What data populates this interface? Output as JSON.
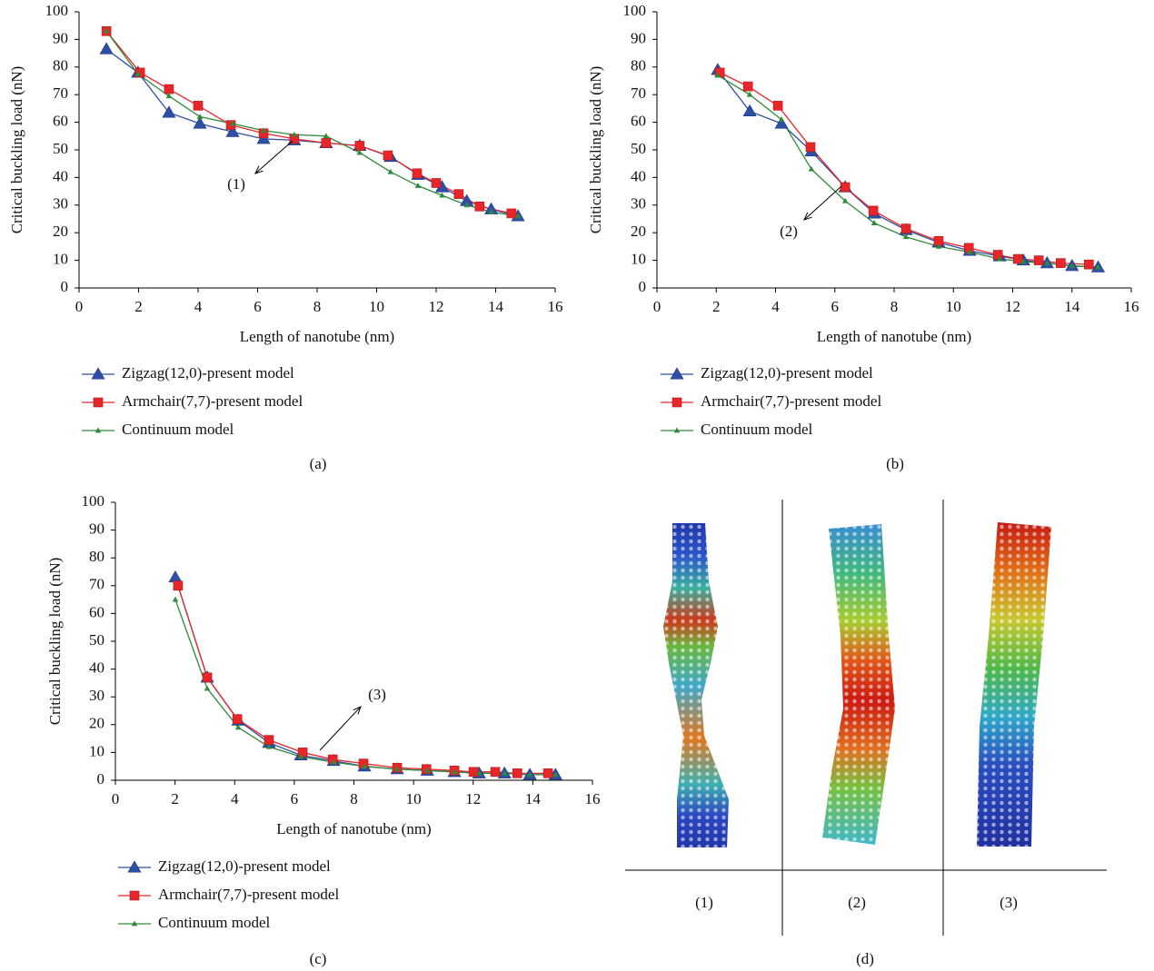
{
  "chart_data": [
    {
      "type": "line",
      "xlabel": "Length of nanotube (nm)",
      "ylabel": "Critical buckling load (nN)",
      "caption": "(a)",
      "annotation": "(1)",
      "xlim": [
        0,
        16
      ],
      "ylim": [
        0,
        100
      ],
      "xticks": [
        0,
        2,
        4,
        6,
        8,
        10,
        12,
        14,
        16
      ],
      "yticks": [
        0,
        10,
        20,
        30,
        40,
        50,
        60,
        70,
        80,
        90,
        100
      ],
      "series": [
        {
          "name": "Zigzag(12,0)-present model",
          "color": "#2e4fa6",
          "marker": "triangle",
          "x": [
            0.92,
            1.98,
            3.02,
            4.06,
            5.16,
            6.2,
            7.23,
            8.3,
            9.43,
            10.47,
            11.39,
            12.2,
            13.03,
            13.85,
            14.75
          ],
          "values": [
            86.5,
            78,
            63.5,
            59.5,
            56.5,
            54,
            53.5,
            52.5,
            51.5,
            47.5,
            41,
            36.5,
            31.5,
            28.5,
            26
          ]
        },
        {
          "name": "Armchair(7,7)-present model",
          "color": "#e8262a",
          "marker": "square",
          "x": [
            0.92,
            2.05,
            3.02,
            4.0,
            5.1,
            6.2,
            7.23,
            8.3,
            9.43,
            10.38,
            11.36,
            12.0,
            12.76,
            13.46,
            14.53
          ],
          "values": [
            93,
            78,
            72,
            66,
            59,
            56,
            54,
            52.5,
            51.5,
            48,
            41.5,
            38,
            34,
            29.5,
            27
          ]
        },
        {
          "name": "Continuum model",
          "color": "#2e8b3a",
          "marker": "small-triangle",
          "x": [
            0.92,
            1.98,
            3.02,
            4.06,
            5.16,
            6.2,
            7.23,
            8.3,
            9.43,
            10.47,
            11.39,
            12.2,
            13.03,
            13.85,
            14.75
          ],
          "values": [
            93,
            77.5,
            69.5,
            62,
            59.5,
            57,
            55.5,
            55,
            49,
            42,
            37,
            33.5,
            30,
            27.5,
            26
          ]
        }
      ]
    },
    {
      "type": "line",
      "xlabel": "Length of nanotube (nm)",
      "ylabel": "Critical buckling load (nN)",
      "caption": "(b)",
      "annotation": "(2)",
      "xlim": [
        0,
        16
      ],
      "ylim": [
        0,
        100
      ],
      "xticks": [
        0,
        2,
        4,
        6,
        8,
        10,
        12,
        14,
        16
      ],
      "yticks": [
        0,
        10,
        20,
        30,
        40,
        50,
        60,
        70,
        80,
        90,
        100
      ],
      "series": [
        {
          "name": "Zigzag(12,0)-present model",
          "color": "#2e4fa6",
          "marker": "triangle",
          "x": [
            2.05,
            3.13,
            4.2,
            5.21,
            6.35,
            7.33,
            8.4,
            9.5,
            10.55,
            11.56,
            12.36,
            13.16,
            14.0,
            14.88
          ],
          "values": [
            79,
            64,
            59.5,
            49.5,
            36.5,
            27,
            21,
            16.5,
            13.5,
            11.5,
            10,
            9,
            8,
            7.5
          ]
        },
        {
          "name": "Armchair(7,7)-present model",
          "color": "#e8262a",
          "marker": "square",
          "x": [
            2.12,
            3.07,
            4.08,
            5.18,
            6.35,
            7.3,
            8.4,
            9.5,
            10.52,
            11.5,
            12.18,
            12.88,
            13.62,
            14.57
          ],
          "values": [
            78,
            73,
            66,
            51,
            36.5,
            28,
            21.5,
            17,
            14.5,
            12,
            10.5,
            10,
            9,
            8.5
          ]
        },
        {
          "name": "Continuum model",
          "color": "#2e8b3a",
          "marker": "small-triangle",
          "x": [
            2.05,
            3.13,
            4.2,
            5.21,
            6.35,
            7.33,
            8.4,
            9.5,
            10.55,
            11.56,
            12.36,
            13.16,
            14.0,
            14.88
          ],
          "values": [
            77,
            70,
            61,
            43,
            31.5,
            23.5,
            18.5,
            15,
            13,
            10.5,
            9.5,
            9,
            8,
            7.5
          ]
        }
      ]
    },
    {
      "type": "line",
      "xlabel": "Length of nanotube (nm)",
      "ylabel": "Critical buckling load (nN)",
      "caption": "(c)",
      "annotation": "(3)",
      "xlim": [
        0,
        16
      ],
      "ylim": [
        0,
        100
      ],
      "xticks": [
        0,
        2,
        4,
        6,
        8,
        10,
        12,
        14,
        16
      ],
      "yticks": [
        0,
        10,
        20,
        30,
        40,
        50,
        60,
        70,
        80,
        90,
        100
      ],
      "series": [
        {
          "name": "Zigzag(12,0)-present model",
          "color": "#2e4fa6",
          "marker": "triangle",
          "x": [
            2.01,
            3.08,
            4.12,
            5.15,
            6.22,
            7.32,
            8.35,
            9.45,
            10.46,
            11.37,
            12.2,
            13.05,
            13.9,
            14.76
          ],
          "values": [
            73,
            37,
            21.5,
            13.5,
            9,
            7,
            5,
            4,
            3.5,
            3,
            2.5,
            2.5,
            2,
            2
          ]
        },
        {
          "name": "Armchair(7,7)-present model",
          "color": "#e8262a",
          "marker": "square",
          "x": [
            2.1,
            3.08,
            4.09,
            5.15,
            6.28,
            7.29,
            8.32,
            9.45,
            10.43,
            11.37,
            12.01,
            12.74,
            13.48,
            14.51
          ],
          "values": [
            70,
            37,
            22,
            14.5,
            10,
            7.5,
            6,
            4.5,
            4,
            3.5,
            3,
            3,
            2.5,
            2.5
          ]
        },
        {
          "name": "Continuum model",
          "color": "#2e8b3a",
          "marker": "small-triangle",
          "x": [
            2.01,
            3.08,
            4.12,
            5.15,
            6.22,
            7.32,
            8.35,
            9.45,
            10.46,
            11.37,
            12.2,
            13.05,
            13.9,
            14.76
          ],
          "values": [
            65,
            33,
            19,
            12,
            8.5,
            6.5,
            5,
            4,
            3.5,
            3,
            2.5,
            2.5,
            2,
            2
          ]
        }
      ]
    }
  ],
  "panel_d": {
    "labels": [
      "(1)",
      "(2)",
      "(3)"
    ],
    "caption": "(d)"
  }
}
